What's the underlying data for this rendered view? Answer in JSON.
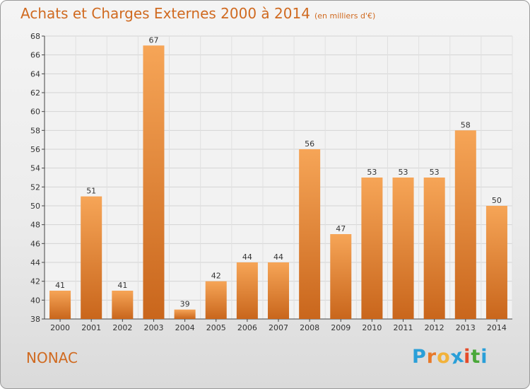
{
  "title": "Achats et Charges Externes 2000 à 2014",
  "subtitle": "(en milliers d'€)",
  "commune": "NONAC",
  "brand": {
    "text": "Proxiti",
    "letters": [
      "P",
      "r",
      "o",
      "x",
      "i",
      "t",
      "i"
    ],
    "colors": [
      "#2a9fd8",
      "#e8792a",
      "#f2b23a",
      "#2a9fd8",
      "#e54b2a",
      "#4aa83a",
      "#2a9fd8"
    ]
  },
  "colors": {
    "bar_light": "#f6a557",
    "bar_dark": "#c9661c",
    "title": "#d06a20"
  },
  "chart_data": {
    "type": "bar",
    "categories": [
      "2000",
      "2001",
      "2002",
      "2003",
      "2004",
      "2005",
      "2006",
      "2007",
      "2008",
      "2009",
      "2010",
      "2011",
      "2012",
      "2013",
      "2014"
    ],
    "values": [
      41,
      51,
      41,
      67,
      39,
      42,
      44,
      44,
      56,
      47,
      53,
      53,
      53,
      58,
      50
    ],
    "ylim": [
      38,
      68
    ],
    "yticks": [
      38,
      40,
      42,
      44,
      46,
      48,
      50,
      52,
      54,
      56,
      58,
      60,
      62,
      64,
      66,
      68
    ],
    "grid": true
  }
}
